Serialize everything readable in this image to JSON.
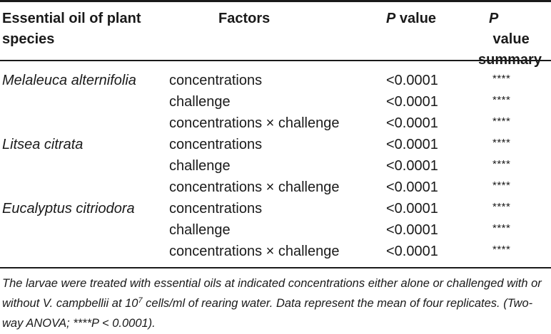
{
  "table": {
    "headers": {
      "species_line1": "Essential oil of plant",
      "species_line2": "species",
      "factors": "Factors",
      "pvalue_p": "P",
      "pvalue_rest": " value",
      "summary_line1_p": "P",
      "summary_line1_rest": " value",
      "summary_line2": "summary"
    },
    "rows": [
      {
        "species": "Melaleuca alternifolia",
        "factor": "concentrations",
        "p": "<0.0001",
        "summary": "****"
      },
      {
        "species": "",
        "factor": "challenge",
        "p": "<0.0001",
        "summary": "****"
      },
      {
        "species": "",
        "factor": "concentrations × challenge",
        "p": "<0.0001",
        "summary": "****"
      },
      {
        "species": "Litsea citrata",
        "factor": "concentrations",
        "p": "<0.0001",
        "summary": "****"
      },
      {
        "species": "",
        "factor": "challenge",
        "p": "<0.0001",
        "summary": "****"
      },
      {
        "species": "",
        "factor": "concentrations × challenge",
        "p": "<0.0001",
        "summary": "****"
      },
      {
        "species": "Eucalyptus citriodora",
        "factor": "concentrations",
        "p": "<0.0001",
        "summary": "****"
      },
      {
        "species": "",
        "factor": "challenge",
        "p": "<0.0001",
        "summary": "****"
      },
      {
        "species": "",
        "factor": "concentrations × challenge",
        "p": "<0.0001",
        "summary": "****"
      }
    ]
  },
  "footnote": {
    "part1": "The larvae were treated with essential oils at indicated concentrations either alone or challenged with or without V. campbellii at 10",
    "superscript": "7",
    "part2": " cells/ml of rearing water. Data represent the mean of four replicates. (Two-way ANOVA; ****P < 0.0001)."
  }
}
